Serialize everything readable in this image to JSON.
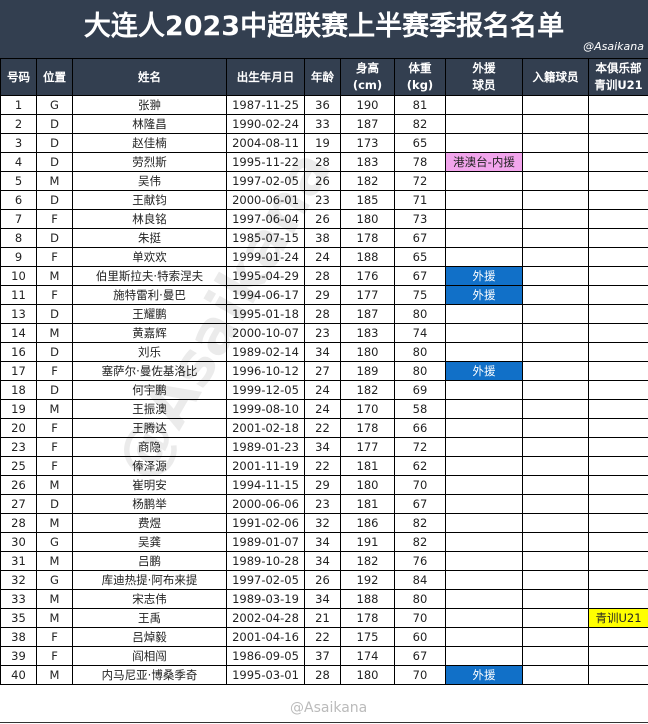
{
  "title": "大连人2023中超联赛上半赛季报名名单",
  "credit": "@Asaikana",
  "watermark": "@Asaikana",
  "colors": {
    "header_bg": "#333f50",
    "hk_mo_tw": "#f2a5ec",
    "foreign": "#1170c8",
    "u21": "#ffff00"
  },
  "headers": [
    "号码",
    "位置",
    "姓名",
    "出生年月日",
    "年龄",
    "身高\n(cm)",
    "体重\n(kg)",
    "外援\n球员",
    "入籍球员",
    "本俱乐部\n青训U21"
  ],
  "rows": [
    [
      "1",
      "G",
      "张翀",
      "1987-11-25",
      "36",
      "190",
      "81",
      "",
      "",
      ""
    ],
    [
      "2",
      "D",
      "林隆昌",
      "1990-02-24",
      "33",
      "187",
      "82",
      "",
      "",
      ""
    ],
    [
      "3",
      "D",
      "赵佳楠",
      "2004-08-11",
      "19",
      "173",
      "65",
      "",
      "",
      ""
    ],
    [
      "4",
      "D",
      "劳烈斯",
      "1995-11-22",
      "28",
      "183",
      "78",
      "港澳台-内援",
      "",
      ""
    ],
    [
      "5",
      "M",
      "吴伟",
      "1997-02-05",
      "26",
      "182",
      "72",
      "",
      "",
      ""
    ],
    [
      "6",
      "D",
      "王献钧",
      "2000-06-01",
      "23",
      "185",
      "71",
      "",
      "",
      ""
    ],
    [
      "7",
      "F",
      "林良铭",
      "1997-06-04",
      "26",
      "180",
      "73",
      "",
      "",
      ""
    ],
    [
      "8",
      "D",
      "朱挺",
      "1985-07-15",
      "38",
      "178",
      "67",
      "",
      "",
      ""
    ],
    [
      "9",
      "F",
      "单欢欢",
      "1999-01-24",
      "24",
      "188",
      "65",
      "",
      "",
      ""
    ],
    [
      "10",
      "M",
      "伯里斯拉夫·特索涅夫",
      "1995-04-29",
      "28",
      "176",
      "67",
      "外援",
      "",
      ""
    ],
    [
      "11",
      "F",
      "施特雷利·曼巴",
      "1994-06-17",
      "29",
      "177",
      "75",
      "外援",
      "",
      ""
    ],
    [
      "13",
      "D",
      "王耀鹏",
      "1995-01-18",
      "28",
      "187",
      "80",
      "",
      "",
      ""
    ],
    [
      "14",
      "M",
      "黄嘉辉",
      "2000-10-07",
      "23",
      "183",
      "74",
      "",
      "",
      ""
    ],
    [
      "16",
      "D",
      "刘乐",
      "1989-02-14",
      "34",
      "180",
      "80",
      "",
      "",
      ""
    ],
    [
      "17",
      "F",
      "塞萨尔·曼佐基洛比",
      "1996-10-12",
      "27",
      "189",
      "80",
      "外援",
      "",
      ""
    ],
    [
      "18",
      "D",
      "何宇鹏",
      "1999-12-05",
      "24",
      "182",
      "69",
      "",
      "",
      ""
    ],
    [
      "19",
      "M",
      "王振澳",
      "1999-08-10",
      "24",
      "170",
      "58",
      "",
      "",
      ""
    ],
    [
      "20",
      "F",
      "王腾达",
      "2001-02-18",
      "22",
      "178",
      "66",
      "",
      "",
      ""
    ],
    [
      "23",
      "F",
      "商隐",
      "1989-01-23",
      "34",
      "177",
      "72",
      "",
      "",
      ""
    ],
    [
      "25",
      "F",
      "俸泽源",
      "2001-11-19",
      "22",
      "181",
      "62",
      "",
      "",
      ""
    ],
    [
      "26",
      "M",
      "崔明安",
      "1994-11-15",
      "29",
      "180",
      "70",
      "",
      "",
      ""
    ],
    [
      "27",
      "D",
      "杨鹏举",
      "2000-06-06",
      "23",
      "181",
      "67",
      "",
      "",
      ""
    ],
    [
      "28",
      "M",
      "费煜",
      "1991-02-06",
      "32",
      "186",
      "82",
      "",
      "",
      ""
    ],
    [
      "30",
      "G",
      "吴龚",
      "1989-01-07",
      "34",
      "191",
      "82",
      "",
      "",
      ""
    ],
    [
      "31",
      "M",
      "吕鹏",
      "1989-10-28",
      "34",
      "182",
      "76",
      "",
      "",
      ""
    ],
    [
      "32",
      "G",
      "库迪热提·阿布来提",
      "1997-02-05",
      "26",
      "192",
      "84",
      "",
      "",
      ""
    ],
    [
      "33",
      "M",
      "宋志伟",
      "1989-03-19",
      "34",
      "188",
      "80",
      "",
      "",
      ""
    ],
    [
      "35",
      "M",
      "王禹",
      "2002-04-28",
      "21",
      "178",
      "70",
      "",
      "",
      "青训U21"
    ],
    [
      "38",
      "F",
      "吕焯毅",
      "2001-04-16",
      "22",
      "175",
      "60",
      "",
      "",
      ""
    ],
    [
      "39",
      "F",
      "阎相闯",
      "1986-09-05",
      "37",
      "174",
      "67",
      "",
      "",
      ""
    ],
    [
      "40",
      "M",
      "内马尼亚·博桑季奇",
      "1995-03-01",
      "28",
      "180",
      "70",
      "外援",
      "",
      ""
    ]
  ]
}
